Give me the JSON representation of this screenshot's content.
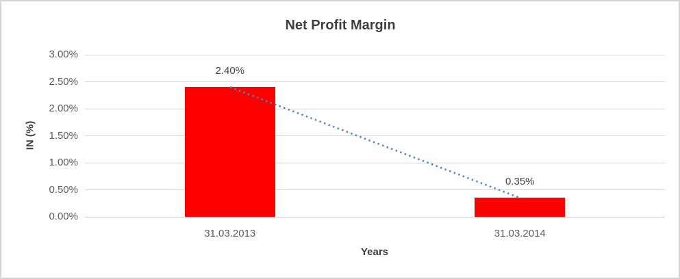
{
  "chart": {
    "title": "Net Profit Margin",
    "y_axis_title": "IN (%)",
    "x_axis_title": "Years"
  },
  "chart_data": {
    "type": "bar",
    "title": "Net Profit Margin",
    "xlabel": "Years",
    "ylabel": "IN (%)",
    "categories": [
      "31.03.2013",
      "31.03.2014"
    ],
    "series": [
      {
        "name": "Net Profit Margin",
        "values": [
          2.4,
          0.35
        ]
      }
    ],
    "data_labels": [
      "2.40%",
      "0.35%"
    ],
    "ylim": [
      0,
      3
    ],
    "y_ticks": [
      {
        "value": 0.0,
        "label": "0.00%"
      },
      {
        "value": 0.5,
        "label": "0.50%"
      },
      {
        "value": 1.0,
        "label": "1.00%"
      },
      {
        "value": 1.5,
        "label": "1.50%"
      },
      {
        "value": 2.0,
        "label": "2.00%"
      },
      {
        "value": 2.5,
        "label": "2.50%"
      },
      {
        "value": 3.0,
        "label": "3.00%"
      }
    ],
    "grid": true,
    "legend": false,
    "bar_color": "#FF0000",
    "trendline": {
      "type": "linear",
      "style": "dotted",
      "color": "#4A86C8",
      "points": [
        2.4,
        0.35
      ]
    }
  },
  "colors": {
    "gridline": "#D9D9D9",
    "axis_line": "#C9C9C9",
    "title_text": "#3F3F3F",
    "axis_label_text": "#595959",
    "border": "#D3D3D3"
  }
}
